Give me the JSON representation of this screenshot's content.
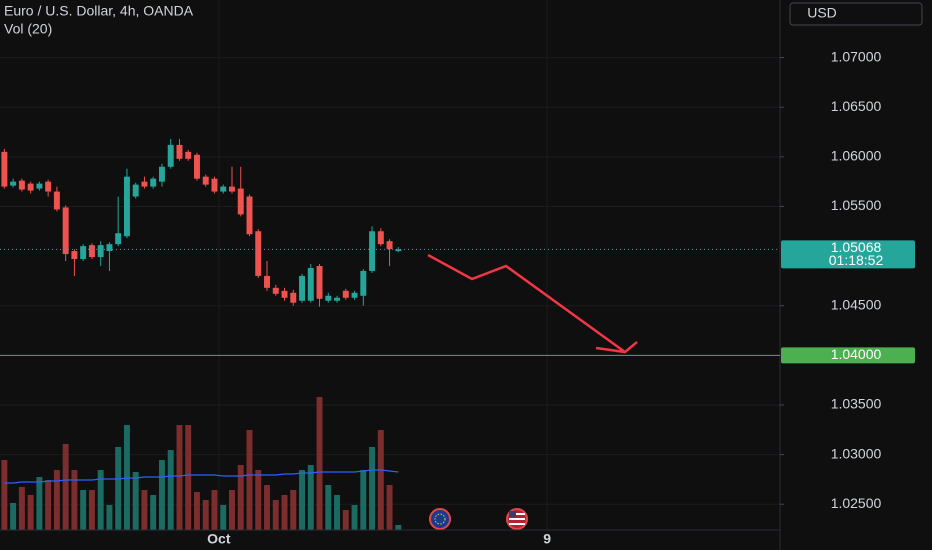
{
  "chart_data": {
    "type": "candlestick",
    "title": "Euro / U.S. Dollar, 4h, OANDA",
    "volume_label": "Vol (20)",
    "currency": "USD",
    "open": [
      1.0605,
      1.0571,
      1.0576,
      1.0573,
      1.0568,
      1.0575,
      1.0565,
      1.0549,
      1.0505,
      1.0497,
      1.0511,
      1.0499,
      1.0505,
      1.0512,
      1.052,
      1.056,
      1.0575,
      1.057,
      1.0575,
      1.059,
      1.0612,
      1.0605,
      1.0602,
      1.058,
      1.0578,
      1.0565,
      1.057,
      1.0568,
      1.056,
      1.0525,
      1.048,
      1.0468,
      1.0465,
      1.0463,
      1.0455,
      1.0455,
      1.049,
      1.0455,
      1.0455,
      1.0465,
      1.0458,
      1.046,
      1.0485,
      1.0525,
      1.0515,
      1.0505
    ],
    "high": [
      1.0608,
      1.0578,
      1.0578,
      1.0575,
      1.0575,
      1.0577,
      1.057,
      1.0551,
      1.0507,
      1.0512,
      1.0513,
      1.0515,
      1.0514,
      1.056,
      1.0588,
      1.0574,
      1.058,
      1.058,
      1.0593,
      1.0618,
      1.0618,
      1.0607,
      1.0604,
      1.0582,
      1.058,
      1.0572,
      1.059,
      1.059,
      1.0562,
      1.0527,
      1.0495,
      1.0471,
      1.0468,
      1.0466,
      1.0482,
      1.0492,
      1.0492,
      1.0463,
      1.046,
      1.0467,
      1.0465,
      1.0487,
      1.053,
      1.0528,
      1.0517,
      1.0509
    ],
    "low": [
      1.0568,
      1.0569,
      1.0565,
      1.0563,
      1.0566,
      1.056,
      1.0545,
      1.0495,
      1.048,
      1.0495,
      1.0497,
      1.049,
      1.0485,
      1.051,
      1.0518,
      1.0558,
      1.0568,
      1.0568,
      1.057,
      1.0588,
      1.0596,
      1.0596,
      1.0576,
      1.057,
      1.0563,
      1.0563,
      1.0563,
      1.054,
      1.052,
      1.0478,
      1.0465,
      1.046,
      1.0455,
      1.045,
      1.0453,
      1.0453,
      1.0449,
      1.0453,
      1.0453,
      1.0456,
      1.0456,
      1.045,
      1.0483,
      1.051,
      1.049,
      1.0504
    ],
    "close": [
      1.057,
      1.0575,
      1.0567,
      1.0566,
      1.0573,
      1.0565,
      1.0547,
      1.0502,
      1.0497,
      1.051,
      1.0499,
      1.0511,
      1.0512,
      1.0523,
      1.058,
      1.0572,
      1.057,
      1.0578,
      1.059,
      1.0612,
      1.0598,
      1.0598,
      1.0578,
      1.0572,
      1.0565,
      1.057,
      1.0565,
      1.0542,
      1.0522,
      1.048,
      1.0468,
      1.0462,
      1.0458,
      1.0453,
      1.048,
      1.0488,
      1.0457,
      1.046,
      1.0458,
      1.0458,
      1.0463,
      1.0485,
      1.0525,
      1.0512,
      1.0507,
      1.05068
    ],
    "volume": [
      70,
      27,
      43,
      35,
      53,
      50,
      60,
      86,
      60,
      40,
      40,
      60,
      25,
      83,
      105,
      58,
      40,
      35,
      70,
      80,
      105,
      105,
      38,
      30,
      40,
      25,
      40,
      65,
      100,
      60,
      45,
      30,
      35,
      40,
      60,
      65,
      133,
      45,
      35,
      20,
      25,
      60,
      83,
      100,
      45,
      5
    ],
    "volume_ma": [
      47,
      47,
      48,
      48,
      48,
      49,
      49,
      50,
      50,
      50,
      50,
      51,
      51,
      51,
      52,
      52,
      53,
      53,
      53,
      54,
      54,
      55,
      55,
      55,
      55,
      54,
      54,
      54,
      55,
      55,
      55,
      55,
      56,
      56,
      57,
      57,
      58,
      58,
      58,
      58,
      58,
      59,
      60,
      60,
      59,
      58
    ],
    "up_color": "#26a69a",
    "down_color": "#ef5350",
    "volume_up_color": "#1c6b63",
    "volume_down_color": "#7c2d2d",
    "volume_ma_color": "#2962ff",
    "ylim": [
      1.0224,
      1.0758
    ],
    "yticks": [
      {
        "value": 1.025,
        "label": "1.02500"
      },
      {
        "value": 1.03,
        "label": "1.03000"
      },
      {
        "value": 1.035,
        "label": "1.03500"
      },
      {
        "value": 1.045,
        "label": "1.04500"
      },
      {
        "value": 1.055,
        "label": "1.05500"
      },
      {
        "value": 1.06,
        "label": "1.06000"
      },
      {
        "value": 1.065,
        "label": "1.06500"
      },
      {
        "value": 1.07,
        "label": "1.07000"
      }
    ],
    "xlim": [
      -0.5,
      88.6
    ],
    "xticks": [
      {
        "value": 24.5,
        "label": "Oct"
      },
      {
        "value": 62,
        "label": "9"
      }
    ],
    "volume_lim": [
      0,
      300
    ],
    "last_price": {
      "value": 1.05068,
      "countdown": "01:18:52"
    },
    "horizontal_line": {
      "value": 1.04,
      "label": "1.04000",
      "color": "#4caf50"
    },
    "grid": true
  }
}
